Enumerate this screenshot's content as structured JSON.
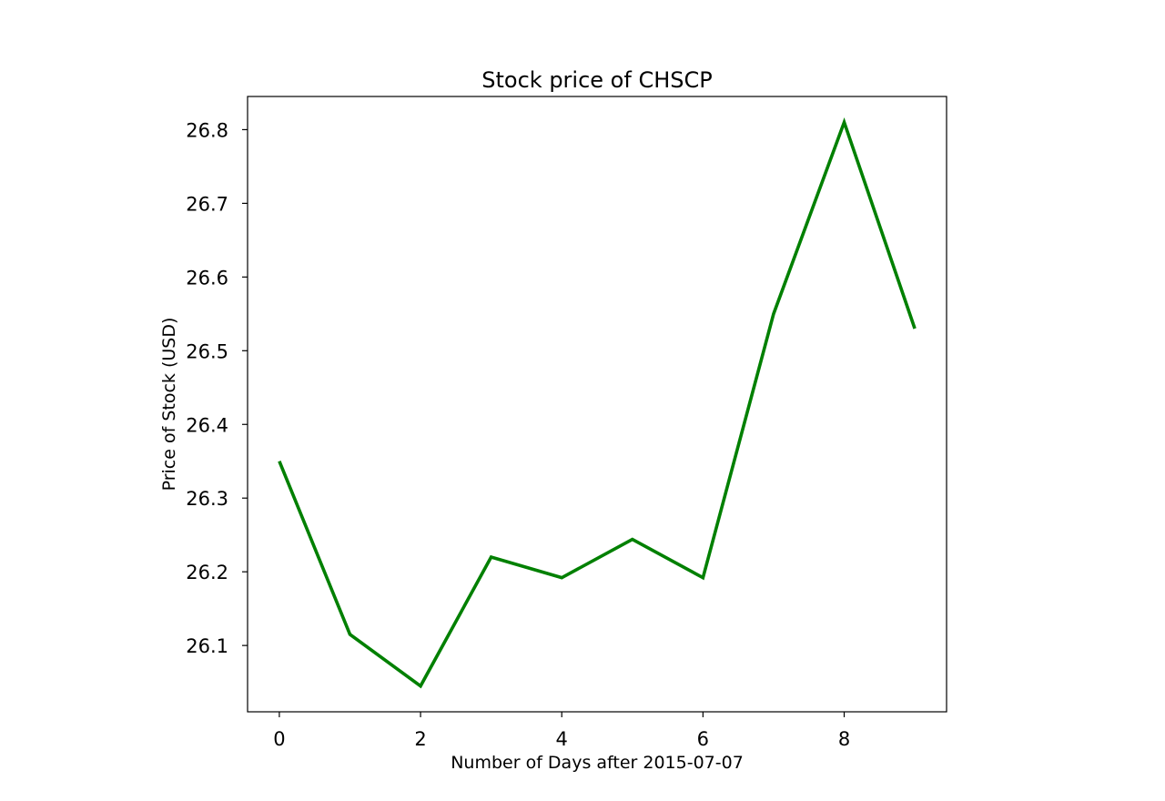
{
  "chart_data": {
    "type": "line",
    "title": "Stock price of CHSCP",
    "xlabel": "Number of Days after 2015-07-07",
    "ylabel": "Price of Stock (USD)",
    "x": [
      0,
      1,
      2,
      3,
      4,
      5,
      6,
      7,
      8,
      9
    ],
    "series": [
      {
        "values": [
          26.35,
          26.115,
          26.045,
          26.22,
          26.192,
          26.244,
          26.192,
          26.55,
          26.81,
          26.53
        ],
        "color": "#008000"
      }
    ],
    "xlim": [
      -0.45,
      9.45
    ],
    "ylim": [
      26.01,
      26.845
    ],
    "xticks": [
      0,
      2,
      4,
      6,
      8
    ],
    "yticks": [
      26.1,
      26.2,
      26.3,
      26.4,
      26.5,
      26.6,
      26.7,
      26.8
    ],
    "xtick_labels": [
      "0",
      "2",
      "4",
      "6",
      "8"
    ],
    "ytick_labels": [
      "26.1",
      "26.2",
      "26.3",
      "26.4",
      "26.5",
      "26.6",
      "26.7",
      "26.8"
    ],
    "grid": false,
    "legend": "none"
  }
}
